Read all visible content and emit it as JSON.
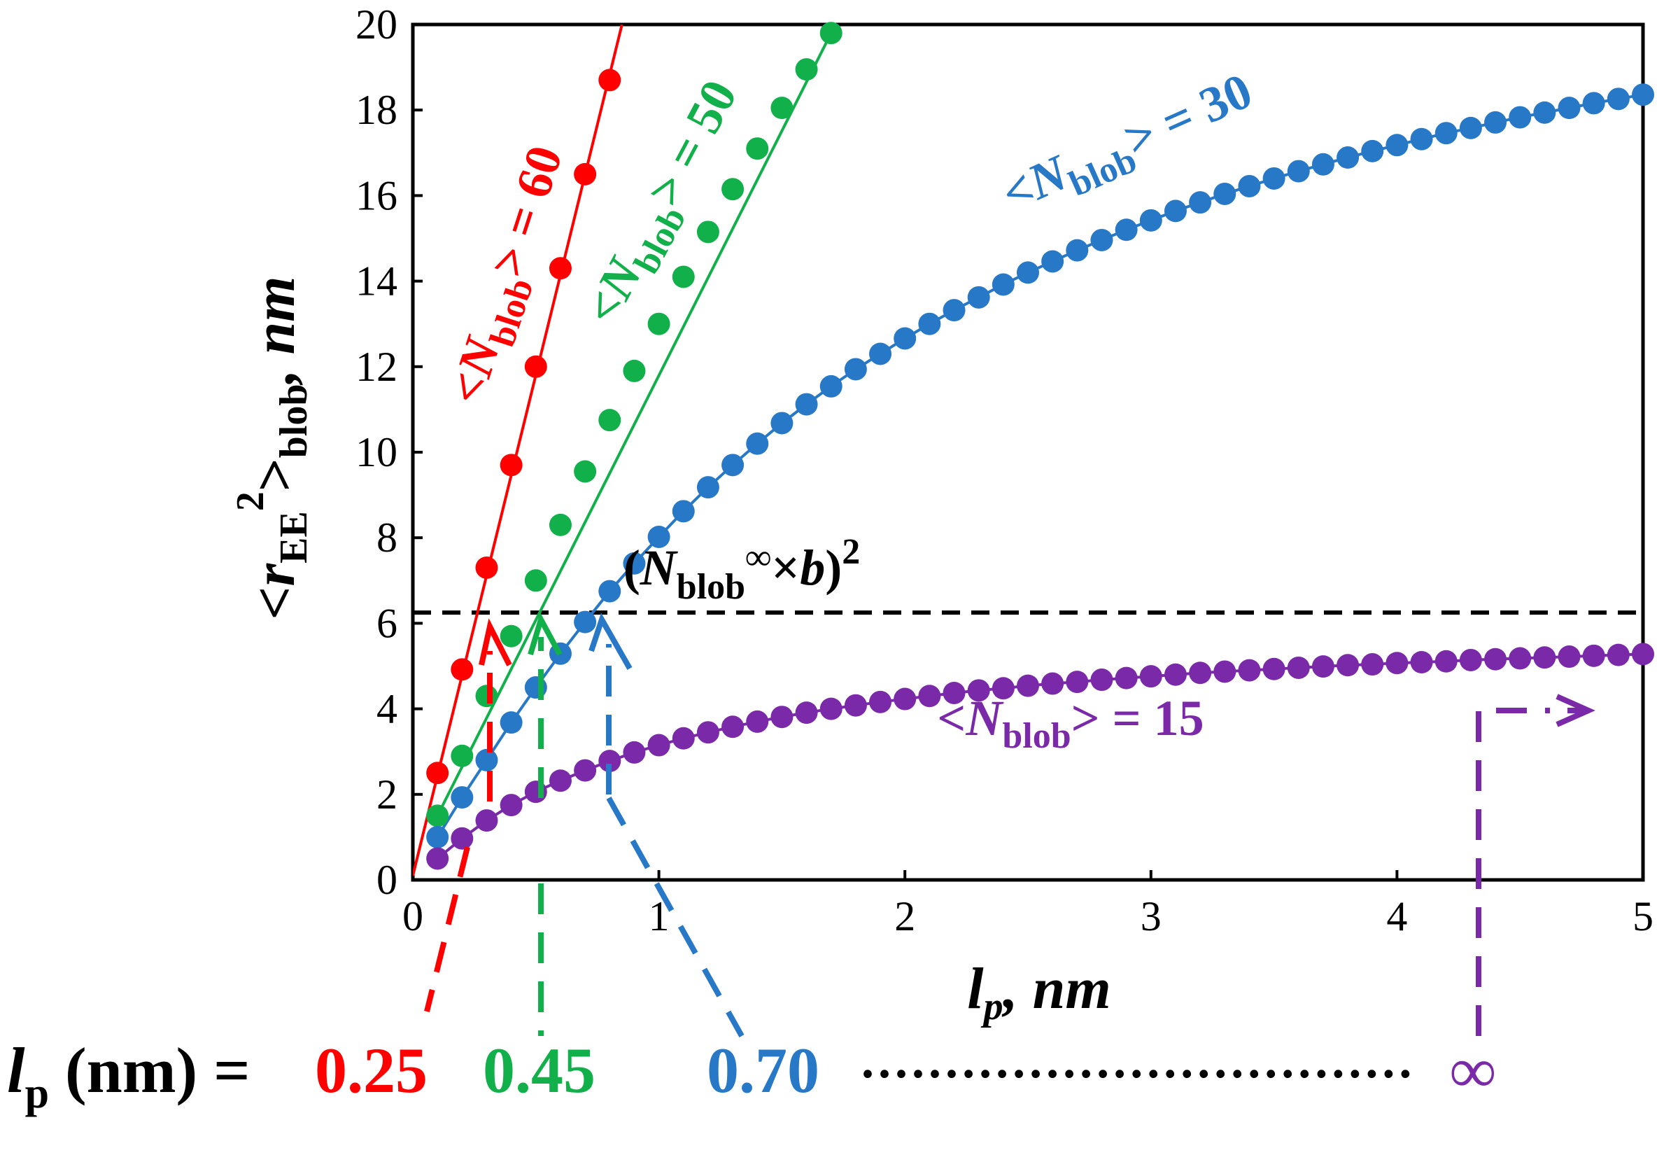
{
  "colors": {
    "red": "#ff0000",
    "green": "#12b04a",
    "blue": "#2878c8",
    "purple": "#7a2aa8",
    "black": "#000000"
  },
  "chart_data": {
    "type": "line",
    "xlabel": {
      "main": "l",
      "sub": "p",
      "rest": ", nm"
    },
    "ylabel": {
      "prefix": "<",
      "main": "r",
      "sub1": "EE",
      "sup": "2",
      "close": ">",
      "sub2": "blob",
      "rest": ", nm"
    },
    "xlim": [
      0,
      5
    ],
    "ylim": [
      0,
      20
    ],
    "xticks": [
      0,
      1,
      2,
      3,
      4,
      5
    ],
    "yticks": [
      0,
      2,
      4,
      6,
      8,
      10,
      12,
      14,
      16,
      18,
      20
    ],
    "reference_line": {
      "y": 6.25,
      "label": {
        "open": "(",
        "N": "N",
        "sub": "blob",
        "sup": "∞",
        "times": "×",
        "b": "b",
        "close": ")",
        "pow": "2"
      }
    },
    "series": [
      {
        "name": "<Nblob> = 60",
        "label": {
          "prefix": "<",
          "N": "N",
          "sub": "blob",
          "suffix": "> = 60"
        },
        "color": "#ff0000",
        "x": [
          0.1,
          0.2,
          0.3,
          0.4,
          0.5,
          0.6,
          0.7,
          0.8
        ],
        "y": [
          2.5,
          4.92,
          7.3,
          9.7,
          12.0,
          14.3,
          16.5,
          18.7
        ],
        "fit_line": [
          [
            0.0,
            0.1
          ],
          [
            0.85,
            20.0
          ]
        ],
        "critical_lp": 0.25,
        "critical_label": "0.25"
      },
      {
        "name": "<Nblob> = 50",
        "label": {
          "prefix": "<",
          "N": "N",
          "sub": "blob",
          "suffix": "> = 50"
        },
        "color": "#12b04a",
        "x": [
          0.1,
          0.2,
          0.3,
          0.4,
          0.5,
          0.6,
          0.7,
          0.8,
          0.9,
          1.0,
          1.1,
          1.2,
          1.3,
          1.4,
          1.5,
          1.6,
          1.7
        ],
        "y": [
          1.5,
          2.9,
          4.3,
          5.7,
          7.0,
          8.3,
          9.55,
          10.75,
          11.9,
          13.0,
          14.1,
          15.15,
          16.15,
          17.1,
          18.05,
          18.95,
          19.8
        ],
        "fit_line": [
          [
            0.1,
            1.5
          ],
          [
            1.7,
            19.8
          ]
        ],
        "critical_lp": 0.45,
        "critical_label": "0.45"
      },
      {
        "name": "<Nblob> = 30",
        "label": {
          "prefix": "<",
          "N": "N",
          "sub": "blob",
          "suffix": "> = 30"
        },
        "color": "#2878c8",
        "x": [
          0.1,
          0.2,
          0.3,
          0.4,
          0.5,
          0.6,
          0.7,
          0.8,
          0.9,
          1.0,
          1.1,
          1.2,
          1.3,
          1.4,
          1.5,
          1.6,
          1.7,
          1.8,
          1.9,
          2.0,
          2.1,
          2.2,
          2.3,
          2.4,
          2.5,
          2.6,
          2.7,
          2.8,
          2.9,
          3.0,
          3.1,
          3.2,
          3.3,
          3.4,
          3.5,
          3.6,
          3.7,
          3.8,
          3.9,
          4.0,
          4.1,
          4.2,
          4.3,
          4.4,
          4.5,
          4.6,
          4.7,
          4.8,
          4.9,
          5.0
        ],
        "y": [
          1.0,
          1.93,
          2.8,
          3.68,
          4.5,
          5.29,
          6.03,
          6.75,
          7.4,
          8.02,
          8.62,
          9.18,
          9.7,
          10.2,
          10.68,
          11.12,
          11.54,
          11.94,
          12.3,
          12.66,
          13.0,
          13.32,
          13.62,
          13.92,
          14.2,
          14.46,
          14.72,
          14.96,
          15.2,
          15.42,
          15.64,
          15.84,
          16.04,
          16.22,
          16.4,
          16.57,
          16.73,
          16.89,
          17.04,
          17.18,
          17.32,
          17.46,
          17.58,
          17.71,
          17.83,
          17.94,
          18.05,
          18.16,
          18.26,
          18.36
        ],
        "critical_lp": 0.7,
        "critical_label": "0.70"
      },
      {
        "name": "<Nblob> = 15",
        "label": {
          "prefix": "<",
          "N": "N",
          "sub": "blob",
          "suffix": "> = 15"
        },
        "color": "#7a2aa8",
        "x": [
          0.1,
          0.2,
          0.3,
          0.4,
          0.5,
          0.6,
          0.7,
          0.8,
          0.9,
          1.0,
          1.1,
          1.2,
          1.3,
          1.4,
          1.5,
          1.6,
          1.7,
          1.8,
          1.9,
          2.0,
          2.1,
          2.2,
          2.3,
          2.4,
          2.5,
          2.6,
          2.7,
          2.8,
          2.9,
          3.0,
          3.1,
          3.2,
          3.3,
          3.4,
          3.5,
          3.6,
          3.7,
          3.8,
          3.9,
          4.0,
          4.1,
          4.2,
          4.3,
          4.4,
          4.5,
          4.6,
          4.7,
          4.8,
          4.9,
          5.0
        ],
        "y": [
          0.5,
          0.97,
          1.39,
          1.75,
          2.06,
          2.32,
          2.56,
          2.78,
          2.98,
          3.15,
          3.31,
          3.45,
          3.58,
          3.7,
          3.81,
          3.91,
          4.0,
          4.08,
          4.16,
          4.23,
          4.3,
          4.37,
          4.43,
          4.48,
          4.54,
          4.59,
          4.63,
          4.68,
          4.72,
          4.76,
          4.8,
          4.84,
          4.87,
          4.9,
          4.93,
          4.96,
          4.99,
          5.02,
          5.04,
          5.07,
          5.09,
          5.11,
          5.14,
          5.16,
          5.18,
          5.2,
          5.22,
          5.24,
          5.26,
          5.28
        ],
        "critical_lp": "∞",
        "critical_label": "∞"
      }
    ],
    "bottom_legend": {
      "prefix_main": "l",
      "prefix_sub": "p",
      "prefix_rest": " (nm) =",
      "dots": "·································"
    }
  }
}
